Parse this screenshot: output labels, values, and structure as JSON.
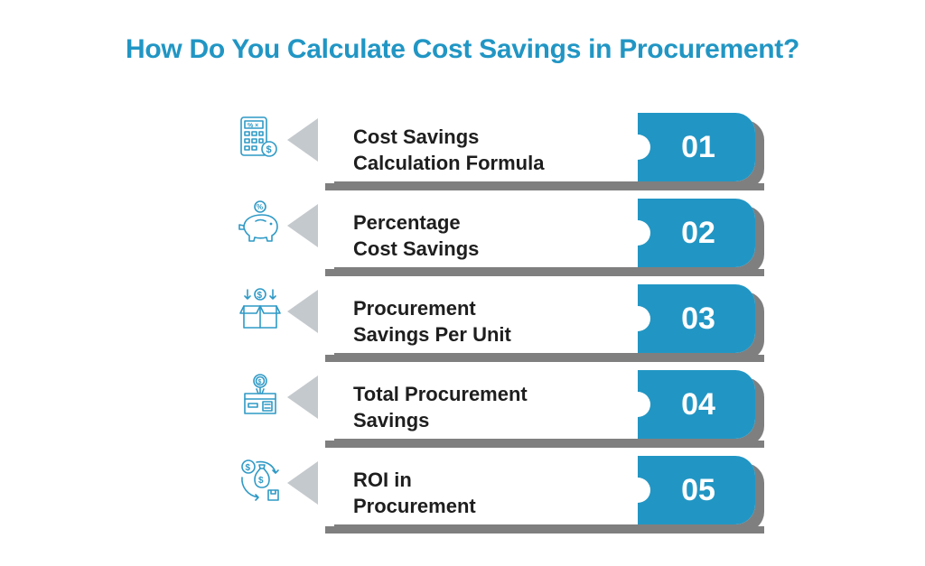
{
  "title": "How Do You Calculate Cost Savings in Procurement?",
  "colors": {
    "accent": "#2196c4",
    "arrow": "#c4c9cd",
    "shadow": "#7f7f7f",
    "text": "#1e1e1e"
  },
  "steps": [
    {
      "number": "01",
      "line1": "Cost Savings",
      "line2": "Calculation Formula",
      "icon": "calculator-dollar-icon"
    },
    {
      "number": "02",
      "line1": "Percentage",
      "line2": "Cost Savings",
      "icon": "piggy-bank-percent-icon"
    },
    {
      "number": "03",
      "line1": "Procurement",
      "line2": "Savings Per Unit",
      "icon": "box-dollar-icon"
    },
    {
      "number": "04",
      "line1": "Total Procurement",
      "line2": "Savings",
      "icon": "open-box-coin-icon"
    },
    {
      "number": "05",
      "line1": "ROI in",
      "line2": "Procurement",
      "icon": "money-cycle-icon"
    }
  ]
}
